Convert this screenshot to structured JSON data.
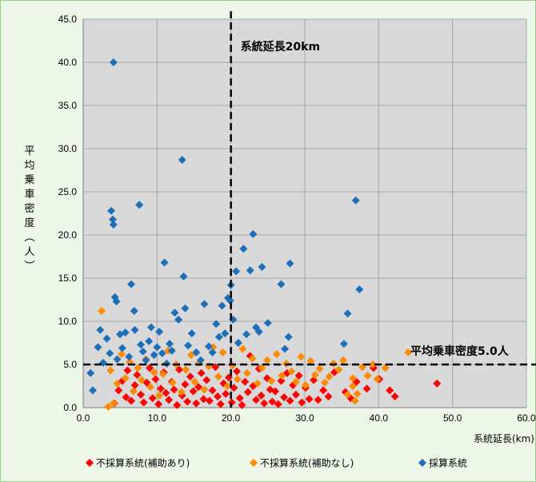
{
  "chart_data": {
    "type": "scatter",
    "title": "",
    "xlabel": "系統延長(km)",
    "ylabel": "平均乗車密度(人)",
    "xlim": [
      0,
      60
    ],
    "ylim": [
      0,
      45
    ],
    "xticks": [
      "0.0",
      "10.0",
      "20.0",
      "30.0",
      "40.0",
      "50.0",
      "60.0"
    ],
    "yticks": [
      "0.0",
      "5.0",
      "10.0",
      "15.0",
      "20.0",
      "25.0",
      "30.0",
      "35.0",
      "40.0",
      "45.0"
    ],
    "grid": true,
    "plot_background": "#d9d9d9",
    "legend_position": "bottom",
    "annotations": [
      {
        "text": "系統延長20km",
        "type": "vline",
        "value": 20
      },
      {
        "text": "平均乗車密度5.0人",
        "type": "hline",
        "value": 5
      }
    ],
    "series": [
      {
        "name": "不採算系統(補助あり)",
        "color": "#ff0000",
        "points": [
          [
            4.2,
            0.5
          ],
          [
            4.8,
            2.0
          ],
          [
            5.3,
            3.1
          ],
          [
            5.8,
            1.2
          ],
          [
            6.0,
            4.3
          ],
          [
            6.5,
            0.8
          ],
          [
            7.0,
            2.6
          ],
          [
            7.3,
            3.8
          ],
          [
            7.8,
            1.5
          ],
          [
            8.2,
            0.6
          ],
          [
            8.6,
            2.9
          ],
          [
            9.0,
            4.6
          ],
          [
            9.4,
            1.1
          ],
          [
            9.8,
            3.3
          ],
          [
            10.2,
            0.4
          ],
          [
            10.5,
            2.2
          ],
          [
            10.9,
            4.1
          ],
          [
            11.2,
            1.7
          ],
          [
            11.6,
            0.9
          ],
          [
            12.0,
            3.0
          ],
          [
            12.3,
            2.1
          ],
          [
            12.7,
            0.3
          ],
          [
            13.0,
            4.4
          ],
          [
            13.4,
            1.4
          ],
          [
            13.8,
            2.7
          ],
          [
            14.1,
            0.7
          ],
          [
            14.5,
            3.6
          ],
          [
            14.9,
            1.9
          ],
          [
            15.3,
            0.5
          ],
          [
            15.6,
            2.4
          ],
          [
            16.0,
            4.0
          ],
          [
            16.3,
            1.0
          ],
          [
            16.7,
            3.2
          ],
          [
            17.1,
            0.8
          ],
          [
            17.5,
            2.0
          ],
          [
            17.9,
            4.7
          ],
          [
            18.2,
            1.3
          ],
          [
            18.6,
            0.4
          ],
          [
            19.0,
            2.8
          ],
          [
            19.3,
            1.6
          ],
          [
            19.7,
            3.5
          ],
          [
            20.1,
            0.6
          ],
          [
            20.4,
            2.3
          ],
          [
            20.8,
            4.2
          ],
          [
            21.2,
            1.1
          ],
          [
            21.5,
            0.3
          ],
          [
            21.9,
            3.0
          ],
          [
            22.3,
            1.8
          ],
          [
            22.6,
            6.0
          ],
          [
            23.0,
            2.5
          ],
          [
            23.4,
            0.9
          ],
          [
            23.8,
            4.5
          ],
          [
            24.1,
            1.4
          ],
          [
            24.5,
            0.5
          ],
          [
            24.9,
            3.4
          ],
          [
            25.3,
            2.1
          ],
          [
            25.6,
            0.7
          ],
          [
            26.0,
            1.9
          ],
          [
            26.4,
            0.4
          ],
          [
            26.8,
            3.1
          ],
          [
            27.2,
            1.2
          ],
          [
            27.6,
            4.0
          ],
          [
            28.0,
            0.8
          ],
          [
            28.4,
            2.6
          ],
          [
            28.8,
            1.5
          ],
          [
            29.2,
            3.7
          ],
          [
            29.6,
            0.6
          ],
          [
            30.1,
            2.3
          ],
          [
            30.6,
            1.0
          ],
          [
            31.2,
            3.2
          ],
          [
            31.8,
            0.9
          ],
          [
            32.5,
            2.0
          ],
          [
            33.2,
            1.3
          ],
          [
            34.0,
            4.1
          ],
          [
            35.5,
            1.8
          ],
          [
            36.2,
            1.1
          ],
          [
            37.0,
            3.0
          ],
          [
            38.4,
            2.2
          ],
          [
            39.3,
            4.6
          ],
          [
            40.1,
            3.3
          ],
          [
            41.5,
            2.0
          ],
          [
            42.2,
            1.3
          ],
          [
            47.9,
            2.8
          ]
        ]
      },
      {
        "name": "不採算系統(補助なし)",
        "color": "#ff8c00",
        "points": [
          [
            2.5,
            11.2
          ],
          [
            3.4,
            0.1
          ],
          [
            3.7,
            4.3
          ],
          [
            4.1,
            0.5
          ],
          [
            4.6,
            2.8
          ],
          [
            5.2,
            6.2
          ],
          [
            5.7,
            3.4
          ],
          [
            6.3,
            5.3
          ],
          [
            6.8,
            1.9
          ],
          [
            7.4,
            4.6
          ],
          [
            7.9,
            3.2
          ],
          [
            8.5,
            5.6
          ],
          [
            9.1,
            2.4
          ],
          [
            9.6,
            4.1
          ],
          [
            10.3,
            1.4
          ],
          [
            10.8,
            3.9
          ],
          [
            11.5,
            6.6
          ],
          [
            12.1,
            2.9
          ],
          [
            12.6,
            5.0
          ],
          [
            13.3,
            1.8
          ],
          [
            13.9,
            4.4
          ],
          [
            14.6,
            6.1
          ],
          [
            15.1,
            3.0
          ],
          [
            15.7,
            5.2
          ],
          [
            16.4,
            2.1
          ],
          [
            17.0,
            4.8
          ],
          [
            17.6,
            7.0
          ],
          [
            18.3,
            3.6
          ],
          [
            18.9,
            6.4
          ],
          [
            19.5,
            2.5
          ],
          [
            20.2,
            4.9
          ],
          [
            20.9,
            3.3
          ],
          [
            21.6,
            6.8
          ],
          [
            22.2,
            4.0
          ],
          [
            22.9,
            5.7
          ],
          [
            23.6,
            2.8
          ],
          [
            24.2,
            4.6
          ],
          [
            24.9,
            5.5
          ],
          [
            25.5,
            3.1
          ],
          [
            26.2,
            6.2
          ],
          [
            26.9,
            3.7
          ],
          [
            27.5,
            5.1
          ],
          [
            28.2,
            4.2
          ],
          [
            28.8,
            3.0
          ],
          [
            29.5,
            5.9
          ],
          [
            30.1,
            2.6
          ],
          [
            30.8,
            5.4
          ],
          [
            31.4,
            3.8
          ],
          [
            32.0,
            4.5
          ],
          [
            32.7,
            2.9
          ],
          [
            33.3,
            3.6
          ],
          [
            33.9,
            5.1
          ],
          [
            34.6,
            4.4
          ],
          [
            35.2,
            5.5
          ],
          [
            35.8,
            1.5
          ],
          [
            36.5,
            2.5
          ],
          [
            37.1,
            1.6
          ],
          [
            37.8,
            4.7
          ],
          [
            38.5,
            3.7
          ],
          [
            39.2,
            5.0
          ],
          [
            39.8,
            3.3
          ],
          [
            40.9,
            4.6
          ],
          [
            44.0,
            6.4
          ],
          [
            36.5,
            3.4
          ],
          [
            36.8,
            0.8
          ]
        ]
      },
      {
        "name": "採算系統",
        "color": "#1e6fb8",
        "points": [
          [
            1.0,
            4.0
          ],
          [
            1.3,
            2.0
          ],
          [
            2.0,
            7.0
          ],
          [
            2.3,
            9.0
          ],
          [
            2.7,
            5.2
          ],
          [
            3.2,
            8.0
          ],
          [
            3.6,
            6.3
          ],
          [
            3.8,
            22.8
          ],
          [
            4.0,
            21.8
          ],
          [
            4.1,
            21.2
          ],
          [
            4.1,
            40.0
          ],
          [
            4.3,
            12.8
          ],
          [
            4.5,
            12.3
          ],
          [
            4.6,
            5.6
          ],
          [
            5.0,
            8.5
          ],
          [
            5.3,
            6.9
          ],
          [
            5.7,
            8.7
          ],
          [
            6.2,
            5.9
          ],
          [
            6.5,
            14.3
          ],
          [
            6.9,
            11.2
          ],
          [
            7.0,
            9.0
          ],
          [
            7.6,
            23.5
          ],
          [
            7.8,
            7.3
          ],
          [
            8.1,
            6.5
          ],
          [
            8.5,
            5.5
          ],
          [
            8.9,
            7.7
          ],
          [
            9.2,
            9.3
          ],
          [
            9.6,
            6.1
          ],
          [
            10.0,
            7.0
          ],
          [
            10.3,
            8.8
          ],
          [
            10.7,
            6.3
          ],
          [
            11.0,
            16.8
          ],
          [
            11.3,
            5.1
          ],
          [
            11.7,
            7.4
          ],
          [
            12.0,
            6.6
          ],
          [
            12.4,
            11.0
          ],
          [
            12.9,
            10.2
          ],
          [
            13.4,
            28.7
          ],
          [
            13.6,
            15.2
          ],
          [
            13.8,
            11.5
          ],
          [
            14.2,
            7.2
          ],
          [
            14.7,
            8.6
          ],
          [
            15.3,
            6.4
          ],
          [
            15.9,
            5.5
          ],
          [
            16.4,
            12.0
          ],
          [
            17.0,
            7.1
          ],
          [
            17.5,
            6.4
          ],
          [
            18.0,
            9.7
          ],
          [
            18.4,
            8.2
          ],
          [
            18.8,
            11.8
          ],
          [
            19.2,
            8.6
          ],
          [
            19.6,
            12.7
          ],
          [
            19.9,
            12.4
          ],
          [
            20.0,
            14.2
          ],
          [
            20.3,
            10.2
          ],
          [
            20.7,
            15.8
          ],
          [
            21.0,
            7.5
          ],
          [
            21.7,
            18.4
          ],
          [
            22.1,
            8.5
          ],
          [
            22.6,
            15.9
          ],
          [
            23.0,
            20.1
          ],
          [
            23.4,
            9.3
          ],
          [
            23.8,
            8.8
          ],
          [
            24.2,
            16.3
          ],
          [
            25.0,
            9.8
          ],
          [
            26.8,
            14.3
          ],
          [
            27.3,
            6.8
          ],
          [
            27.8,
            8.2
          ],
          [
            28.0,
            16.7
          ],
          [
            35.3,
            7.4
          ],
          [
            35.8,
            10.9
          ],
          [
            36.9,
            24.0
          ],
          [
            37.4,
            13.7
          ]
        ]
      }
    ]
  }
}
